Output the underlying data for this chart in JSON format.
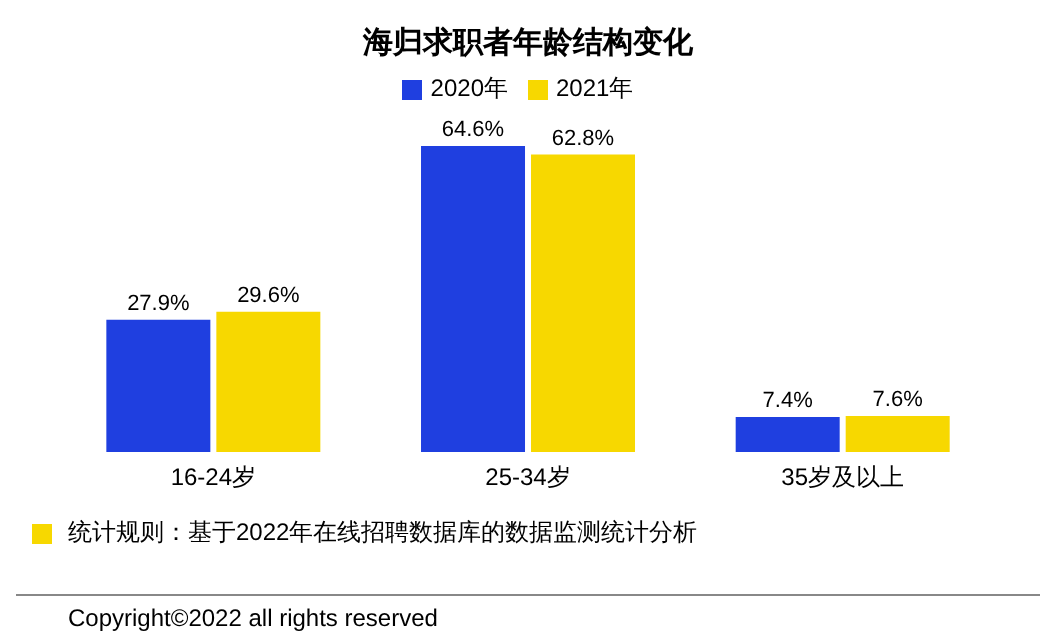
{
  "chart_data": {
    "type": "bar",
    "title": "海归求职者年龄结构变化",
    "categories": [
      "16-24岁",
      "25-34岁",
      "35岁及以上"
    ],
    "series": [
      {
        "name": "2020年",
        "color": "#1f3fe0",
        "values": [
          27.9,
          64.6,
          7.4
        ],
        "value_labels": [
          "27.9%",
          "64.6%",
          "7.4%"
        ]
      },
      {
        "name": "2021年",
        "color": "#f7d800",
        "values": [
          29.6,
          62.8,
          7.6
        ],
        "value_labels": [
          "29.6%",
          "62.8%",
          "7.6%"
        ]
      }
    ],
    "legend": "top",
    "annotations": [
      "统计规则：基于2022年在线招聘数据库的数据监测统计分析",
      "Copyright©2022 all rights reserved"
    ]
  }
}
